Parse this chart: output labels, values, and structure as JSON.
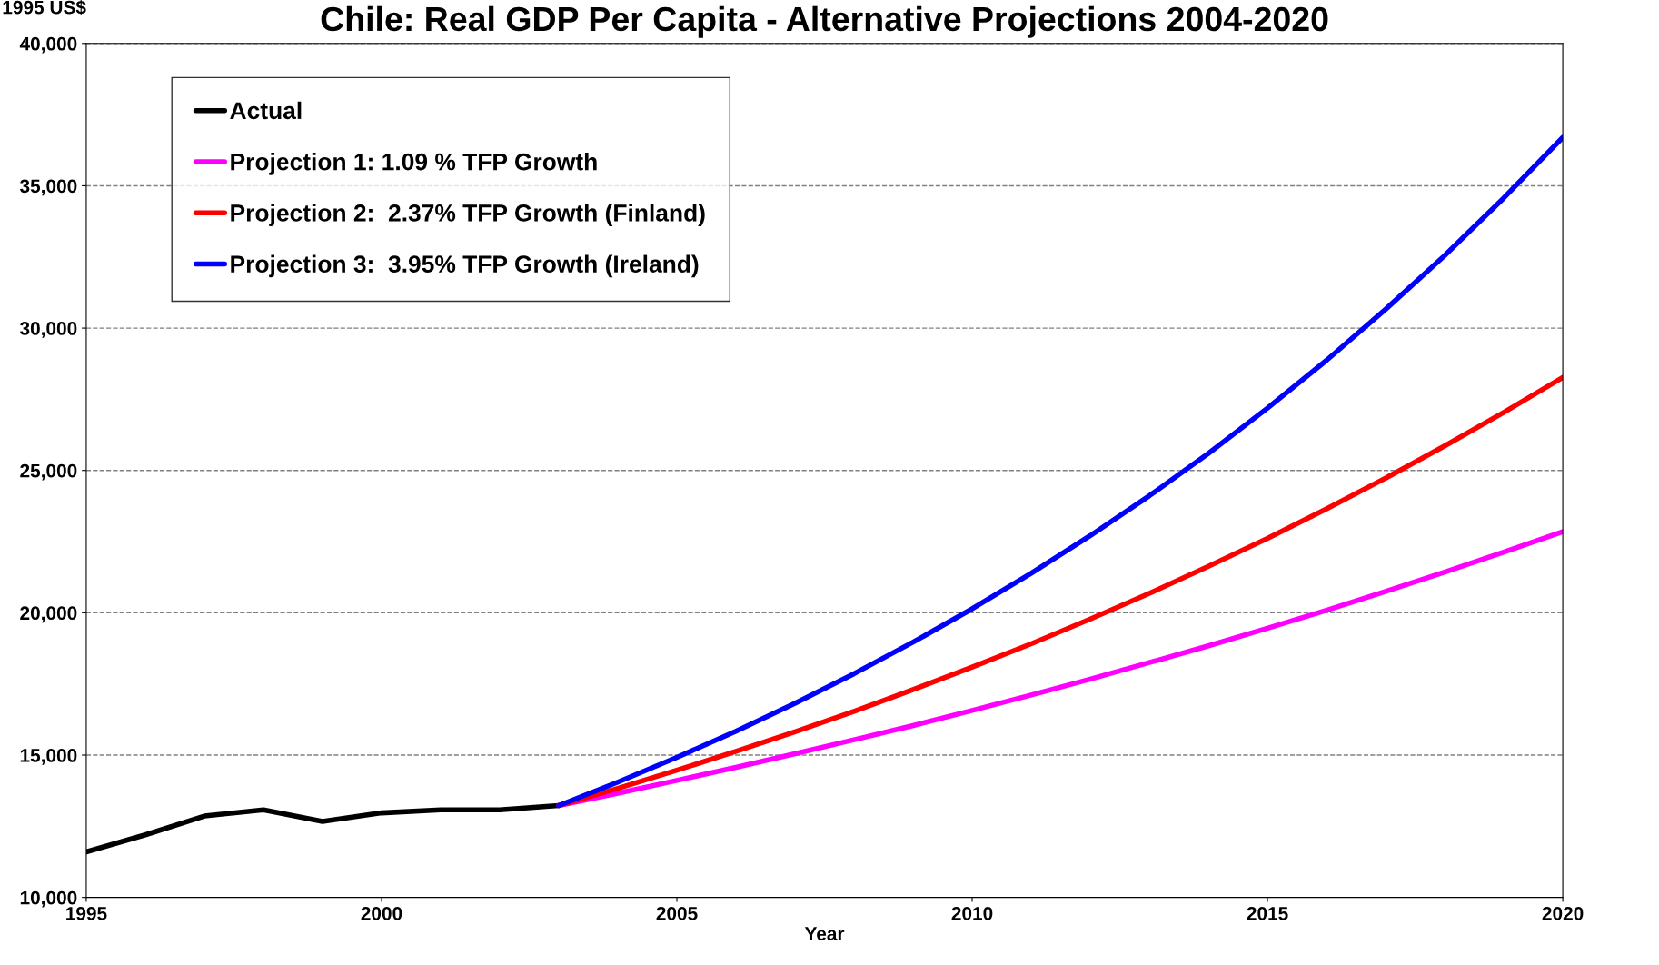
{
  "chart_data": {
    "type": "line",
    "title": "Chile: Real GDP Per Capita - Alternative Projections 2004-2020",
    "xlabel": "Year",
    "ylabel": "1995 US$",
    "xlim": [
      1995,
      2020
    ],
    "xticks": [
      1995,
      2000,
      2005,
      2010,
      2015,
      2020
    ],
    "ylim": [
      10000,
      40000
    ],
    "yticks": [
      {
        "value": 10000,
        "label": "10,000"
      },
      {
        "value": 15000,
        "label": "15,000"
      },
      {
        "value": 20000,
        "label": "20,000"
      },
      {
        "value": 25000,
        "label": "25,000"
      },
      {
        "value": 30000,
        "label": "30,000"
      },
      {
        "value": 35000,
        "label": "35,000"
      },
      {
        "value": 40000,
        "label": "40,000"
      }
    ],
    "grid": "y",
    "legend": "top left",
    "marker": "none",
    "line_style": "solid",
    "series": [
      {
        "name": "Actual",
        "color": "#000000",
        "x": [
          1995,
          1996,
          1997,
          1998,
          1999,
          2000,
          2001,
          2002,
          2003
        ],
        "values": [
          11600,
          12200,
          12860,
          13080,
          12670,
          12970,
          13080,
          13080,
          13230
        ]
      },
      {
        "name": "Projection 1: 1.09 % TFP Growth",
        "color": "#ff00ff",
        "x": [
          2003,
          2004,
          2005,
          2006,
          2007,
          2008,
          2009,
          2010,
          2011,
          2012,
          2013,
          2014,
          2015,
          2016,
          2017,
          2018,
          2019,
          2020
        ],
        "values": [
          13230,
          13660,
          14110,
          14570,
          15050,
          15540,
          16040,
          16570,
          17110,
          17670,
          18250,
          18840,
          19460,
          20090,
          20750,
          21430,
          22130,
          22850
        ]
      },
      {
        "name": "Projection 2:  2.37% TFP Growth (Finland)",
        "color": "#ff0000",
        "x": [
          2003,
          2004,
          2005,
          2006,
          2007,
          2008,
          2009,
          2010,
          2011,
          2012,
          2013,
          2014,
          2015,
          2016,
          2017,
          2018,
          2019,
          2020
        ],
        "values": [
          13230,
          13830,
          14470,
          15130,
          15820,
          16540,
          17300,
          18090,
          18910,
          19780,
          20680,
          21630,
          22610,
          23650,
          24730,
          25860,
          27040,
          28270
        ]
      },
      {
        "name": "Projection 3:  3.95% TFP Growth (Ireland)",
        "color": "#0000ff",
        "x": [
          2003,
          2004,
          2005,
          2006,
          2007,
          2008,
          2009,
          2010,
          2011,
          2012,
          2013,
          2014,
          2015,
          2016,
          2017,
          2018,
          2019,
          2020
        ],
        "values": [
          13230,
          14050,
          14920,
          15840,
          16820,
          17860,
          18970,
          20140,
          21390,
          22710,
          24110,
          25600,
          27190,
          28870,
          30660,
          32550,
          34570,
          36700
        ]
      }
    ]
  }
}
